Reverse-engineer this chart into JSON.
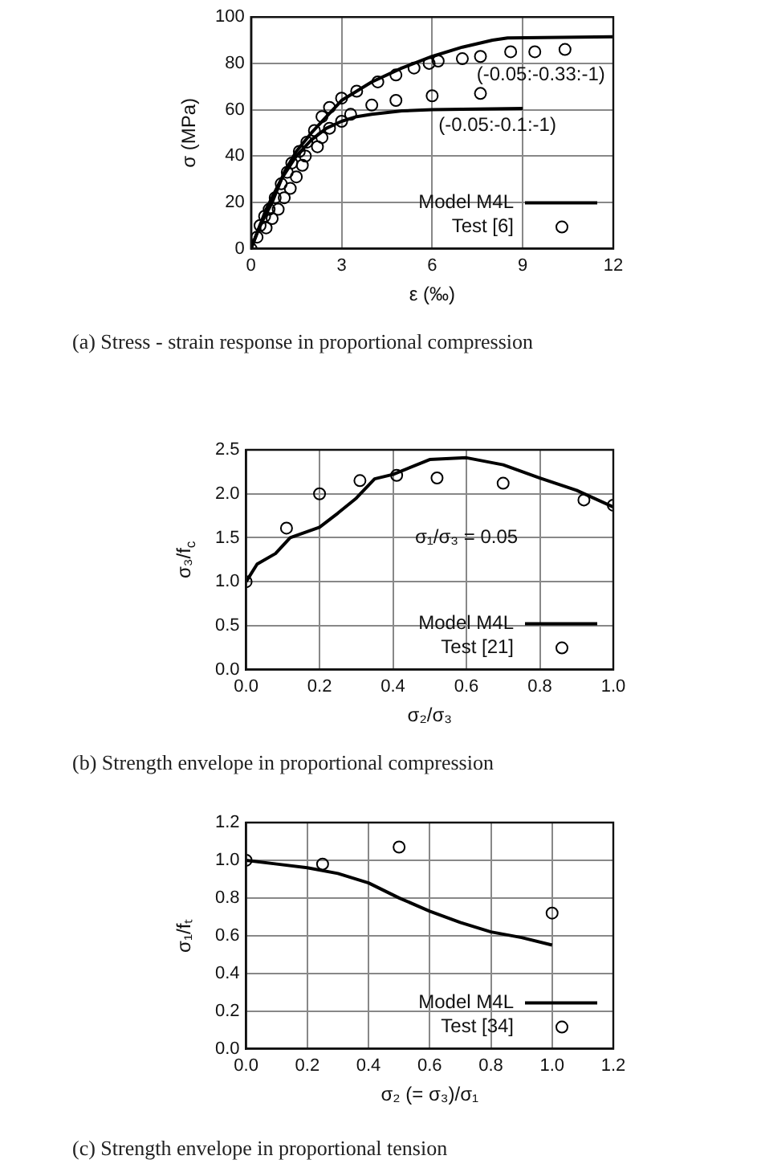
{
  "chart_data": [
    {
      "type": "line",
      "title": "(a) Stress - strain response in proportional compression",
      "xlabel": "ε (‰)",
      "ylabel": "σ (MPa)",
      "xlim": [
        0,
        12
      ],
      "xticks": [
        0,
        3,
        6,
        9,
        12
      ],
      "ylim": [
        0,
        100
      ],
      "yticks": [
        0,
        20,
        40,
        60,
        80,
        100
      ],
      "grid": true,
      "legend": "bottom right",
      "annotations": [
        "(-0.05:-0.33:-1)",
        "(-0.05:-0.1:-1)"
      ],
      "series": [
        {
          "name": "Model M4L",
          "type": "line",
          "color": "#000000",
          "marker": "none",
          "x": [
            0,
            0.3,
            0.7,
            1.1,
            1.5,
            2,
            2.5,
            3,
            4,
            5,
            6,
            7,
            8,
            8.5,
            12
          ],
          "values": [
            0,
            10,
            20,
            33,
            42,
            50,
            57,
            64,
            72,
            78,
            83,
            87,
            90,
            91,
            91.5
          ]
        },
        {
          "type": "line",
          "color": "#000000",
          "marker": "none",
          "x": [
            0,
            0.5,
            1,
            1.5,
            2,
            2.5,
            3,
            3.5,
            4,
            5,
            6,
            9
          ],
          "values": [
            0,
            17,
            30,
            40,
            47,
            52,
            55,
            57,
            58,
            59.5,
            60,
            60.5
          ]
        },
        {
          "name": "Test [6]",
          "type": "scatter",
          "color": "#000000",
          "marker": "circle",
          "x": [
            0,
            0.2,
            0.3,
            0.45,
            0.6,
            0.8,
            1,
            1.2,
            1.35,
            1.6,
            1.85,
            2.1,
            2.35,
            2.6,
            3,
            3.5,
            4.2,
            4.8,
            5.4,
            5.9,
            6.2,
            7,
            7.6,
            8.6,
            9.4,
            10.4
          ],
          "values": [
            0,
            5,
            10,
            14,
            17,
            22,
            28,
            33,
            37,
            42,
            46,
            51,
            57,
            61,
            65,
            68,
            72,
            75,
            78,
            80,
            81,
            82,
            83,
            85,
            85,
            86
          ]
        },
        {
          "type": "scatter",
          "color": "#000000",
          "marker": "circle",
          "x": [
            0.5,
            0.7,
            0.9,
            1.1,
            1.3,
            1.5,
            1.7,
            1.8,
            2.2,
            2.35,
            2.6,
            3,
            3.3,
            4,
            4.8,
            6,
            7.6
          ],
          "values": [
            9,
            13,
            17,
            22,
            26,
            31,
            36,
            40,
            44,
            48,
            52,
            55,
            58,
            62,
            64,
            66,
            67
          ]
        }
      ]
    },
    {
      "type": "line",
      "title": "(b) Strength envelope in proportional compression",
      "xlabel": "σ₂/σ₃",
      "ylabel": "σ₃/f$_{c}$",
      "xlim": [
        0,
        1
      ],
      "xticks": [
        {
          "value": 0,
          "label": "0.0"
        },
        {
          "value": 0.2,
          "label": "0.2"
        },
        {
          "value": 0.4,
          "label": "0.4"
        },
        {
          "value": 0.6,
          "label": "0.6"
        },
        {
          "value": 0.8,
          "label": "0.8"
        },
        {
          "value": 1,
          "label": "1.0"
        }
      ],
      "ylim": [
        0,
        2.5
      ],
      "yticks": [
        {
          "value": 0,
          "label": "0.0"
        },
        {
          "value": 0.5,
          "label": "0.5"
        },
        {
          "value": 1,
          "label": "1.0"
        },
        {
          "value": 1.5,
          "label": "1.5"
        },
        {
          "value": 2,
          "label": "2.0"
        },
        {
          "value": 2.5,
          "label": "2.5"
        }
      ],
      "grid": true,
      "legend": "bottom right",
      "annotations": [
        "σ₁/σ₃ = 0.05"
      ],
      "series": [
        {
          "name": "Model M4L",
          "type": "line",
          "color": "#000000",
          "marker": "none",
          "x": [
            0,
            0.03,
            0.08,
            0.12,
            0.2,
            0.25,
            0.3,
            0.35,
            0.4,
            0.5,
            0.6,
            0.7,
            0.8,
            0.9,
            1
          ],
          "values": [
            1,
            1.2,
            1.32,
            1.5,
            1.62,
            1.78,
            1.95,
            2.17,
            2.22,
            2.39,
            2.41,
            2.33,
            2.18,
            2.04,
            1.85
          ]
        },
        {
          "name": "Test [21]",
          "type": "scatter",
          "color": "#000000",
          "marker": "circle",
          "x": [
            0,
            0.11,
            0.2,
            0.31,
            0.41,
            0.52,
            0.7,
            0.92,
            1
          ],
          "values": [
            1,
            1.61,
            2,
            2.15,
            2.21,
            2.18,
            2.12,
            1.93,
            1.87
          ]
        }
      ]
    },
    {
      "type": "line",
      "title": "(c) Strength envelope in proportional tension",
      "xlabel": "σ₂ (= σ₃)/σ₁",
      "ylabel": "σ₁/fₜ",
      "xlim": [
        0,
        1.2
      ],
      "xticks": [
        {
          "value": 0,
          "label": "0.0"
        },
        {
          "value": 0.2,
          "label": "0.2"
        },
        {
          "value": 0.4,
          "label": "0.4"
        },
        {
          "value": 0.6,
          "label": "0.6"
        },
        {
          "value": 0.8,
          "label": "0.8"
        },
        {
          "value": 1,
          "label": "1.0"
        },
        {
          "value": 1.2,
          "label": "1.2"
        }
      ],
      "ylim": [
        0,
        1.2
      ],
      "yticks": [
        {
          "value": 0,
          "label": "0.0"
        },
        {
          "value": 0.2,
          "label": "0.2"
        },
        {
          "value": 0.4,
          "label": "0.4"
        },
        {
          "value": 0.6,
          "label": "0.6"
        },
        {
          "value": 0.8,
          "label": "0.8"
        },
        {
          "value": 1,
          "label": "1.0"
        },
        {
          "value": 1.2,
          "label": "1.2"
        }
      ],
      "grid": true,
      "legend": "bottom right",
      "series": [
        {
          "name": "Model M4L",
          "type": "line",
          "color": "#000000",
          "marker": "none",
          "x": [
            0,
            0.1,
            0.2,
            0.3,
            0.4,
            0.5,
            0.6,
            0.7,
            0.8,
            0.9,
            1
          ],
          "values": [
            1,
            0.98,
            0.96,
            0.93,
            0.88,
            0.8,
            0.73,
            0.67,
            0.62,
            0.59,
            0.55
          ]
        },
        {
          "name": "Test [34]",
          "type": "scatter",
          "color": "#000000",
          "marker": "circle",
          "x": [
            0,
            0.25,
            0.5,
            1
          ],
          "values": [
            1,
            0.98,
            1.07,
            0.72
          ]
        }
      ]
    }
  ]
}
